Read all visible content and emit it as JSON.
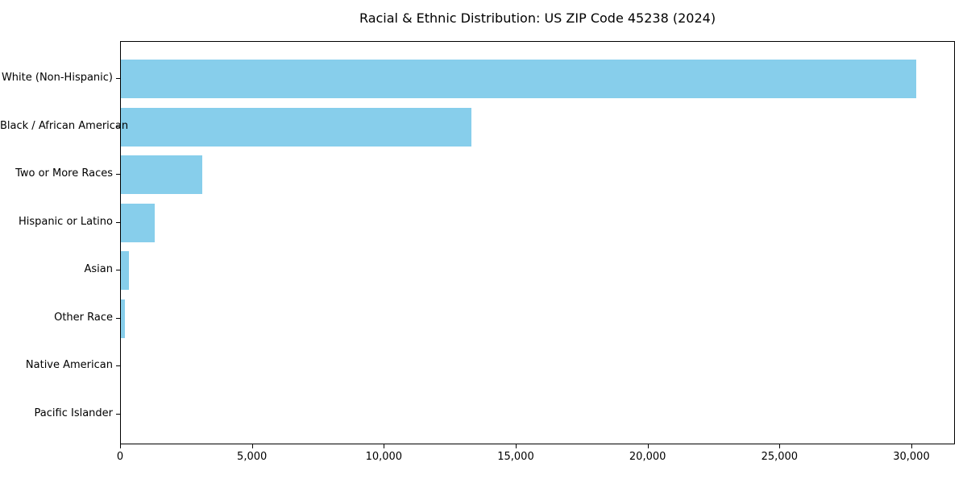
{
  "chart_data": {
    "type": "bar",
    "orientation": "horizontal",
    "title": "Racial & Ethnic Distribution: US ZIP Code 45238 (2024)",
    "xlabel": "",
    "ylabel": "",
    "categories": [
      "White (Non-Hispanic)",
      "Black / African American",
      "Two or More Races",
      "Hispanic or Latino",
      "Asian",
      "Other Race",
      "Native American",
      "Pacific Islander"
    ],
    "values": [
      30150,
      13300,
      3100,
      1270,
      300,
      150,
      0,
      0
    ],
    "xlim": [
      0,
      31650
    ],
    "x_ticks": [
      0,
      5000,
      10000,
      15000,
      20000,
      25000,
      30000
    ],
    "x_tick_labels": [
      "0",
      "5,000",
      "10,000",
      "15,000",
      "20,000",
      "25,000",
      "30,000"
    ],
    "bar_color": "#87CEEB",
    "axis_color": "#000000",
    "background_color": "#FFFFFF",
    "grid": false,
    "legend": null
  }
}
